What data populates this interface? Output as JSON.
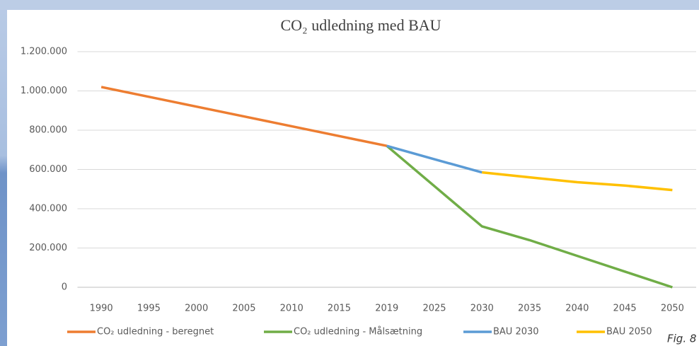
{
  "chart_data": {
    "type": "line",
    "title": "CO₂ udledning med BAU",
    "categories": [
      "1990",
      "1995",
      "2000",
      "2005",
      "2010",
      "2015",
      "2019",
      "2025",
      "2030",
      "2035",
      "2040",
      "2045",
      "2050"
    ],
    "series": [
      {
        "name": "CO₂ udledning - beregnet",
        "color": "#ed7d31",
        "values": [
          1020000,
          970000,
          920000,
          870000,
          820000,
          770000,
          720000,
          null,
          null,
          null,
          null,
          null,
          null
        ]
      },
      {
        "name": "CO₂ udledning - Målsætning",
        "color": "#70ad47",
        "values": [
          null,
          null,
          null,
          null,
          null,
          null,
          720000,
          515000,
          310000,
          240000,
          160000,
          80000,
          0
        ]
      },
      {
        "name": "BAU 2030",
        "color": "#5b9bd5",
        "values": [
          null,
          null,
          null,
          null,
          null,
          null,
          720000,
          652000,
          585000,
          null,
          null,
          null,
          null
        ]
      },
      {
        "name": "BAU 2050",
        "color": "#ffc000",
        "values": [
          null,
          null,
          null,
          null,
          null,
          null,
          null,
          null,
          585000,
          560000,
          535000,
          518000,
          495000
        ]
      }
    ],
    "ylim": [
      0,
      1200000
    ],
    "yticks": [
      0,
      {
        "value": 200000,
        "label": "200.000"
      },
      {
        "value": 400000,
        "label": "400.000"
      },
      {
        "value": 600000,
        "label": "600.000"
      },
      {
        "value": 800000,
        "label": "800.000"
      },
      {
        "value": 1000000,
        "label": "1.000.000"
      },
      {
        "value": 1200000,
        "label": "1.200.000"
      }
    ],
    "grid": true,
    "legend": "bottom",
    "annotation": "Fig. 8"
  }
}
